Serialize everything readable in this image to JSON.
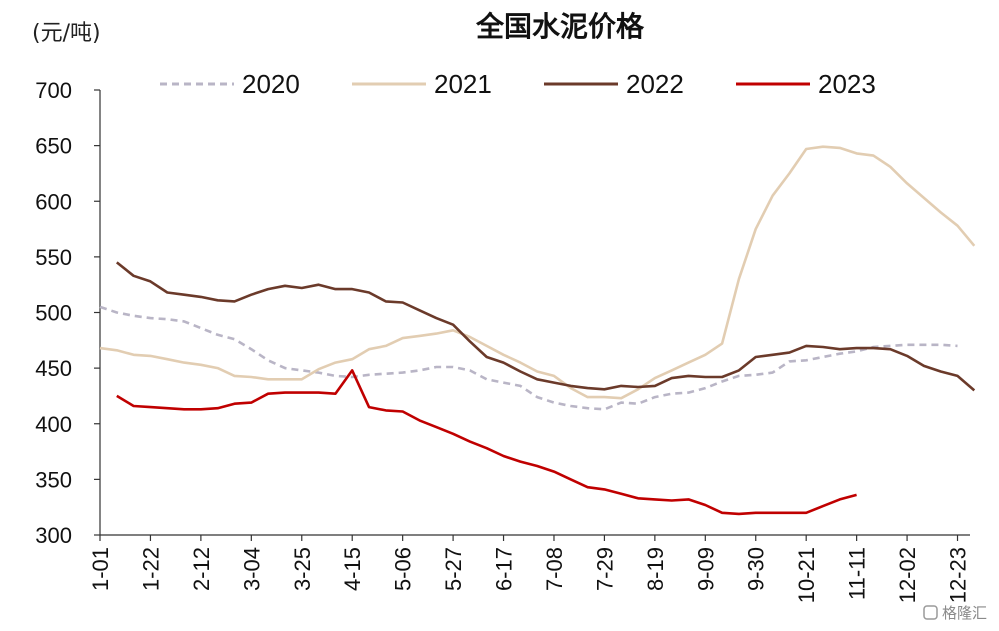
{
  "chart_data": {
    "type": "line",
    "title": "全国水泥价格",
    "ylabel": "(元/吨)",
    "xlabel": "",
    "ylim": [
      300,
      700
    ],
    "yticks": [
      300,
      350,
      400,
      450,
      500,
      550,
      600,
      650,
      700
    ],
    "x_ticks": [
      "1-01",
      "1-22",
      "2-12",
      "3-04",
      "3-25",
      "4-15",
      "5-06",
      "5-27",
      "6-17",
      "7-08",
      "7-29",
      "8-19",
      "9-09",
      "9-30",
      "10-21",
      "11-11",
      "12-02",
      "12-23"
    ],
    "legend_position": "top",
    "grid": false,
    "series": [
      {
        "name": "2020",
        "color": "#b9b5c6",
        "dash": true,
        "points": [
          [
            "1-01",
            505
          ],
          [
            "1-08",
            500
          ],
          [
            "1-15",
            497
          ],
          [
            "1-22",
            495
          ],
          [
            "1-29",
            494
          ],
          [
            "2-05",
            492
          ],
          [
            "2-12",
            486
          ],
          [
            "2-19",
            480
          ],
          [
            "2-26",
            476
          ],
          [
            "3-04",
            467
          ],
          [
            "3-11",
            457
          ],
          [
            "3-18",
            450
          ],
          [
            "3-25",
            448
          ],
          [
            "4-01",
            446
          ],
          [
            "4-08",
            443
          ],
          [
            "4-15",
            442
          ],
          [
            "4-22",
            444
          ],
          [
            "4-29",
            445
          ],
          [
            "5-06",
            446
          ],
          [
            "5-13",
            448
          ],
          [
            "5-20",
            451
          ],
          [
            "5-27",
            451
          ],
          [
            "6-03",
            448
          ],
          [
            "6-10",
            440
          ],
          [
            "6-17",
            437
          ],
          [
            "6-24",
            434
          ],
          [
            "7-01",
            424
          ],
          [
            "7-08",
            419
          ],
          [
            "7-15",
            416
          ],
          [
            "7-22",
            414
          ],
          [
            "7-29",
            413
          ],
          [
            "8-05",
            419
          ],
          [
            "8-12",
            418
          ],
          [
            "8-19",
            424
          ],
          [
            "8-26",
            427
          ],
          [
            "9-02",
            428
          ],
          [
            "9-09",
            432
          ],
          [
            "9-16",
            438
          ],
          [
            "9-23",
            443
          ],
          [
            "9-30",
            444
          ],
          [
            "10-07",
            446
          ],
          [
            "10-14",
            456
          ],
          [
            "10-21",
            457
          ],
          [
            "10-28",
            460
          ],
          [
            "11-04",
            463
          ],
          [
            "11-11",
            465
          ],
          [
            "11-18",
            469
          ],
          [
            "11-25",
            470
          ],
          [
            "12-02",
            471
          ],
          [
            "12-09",
            471
          ],
          [
            "12-16",
            471
          ],
          [
            "12-23",
            470
          ]
        ]
      },
      {
        "name": "2021",
        "color": "#e2cdb2",
        "dash": false,
        "points": [
          [
            "1-01",
            468
          ],
          [
            "1-08",
            466
          ],
          [
            "1-15",
            462
          ],
          [
            "1-22",
            461
          ],
          [
            "1-29",
            458
          ],
          [
            "2-05",
            455
          ],
          [
            "2-12",
            453
          ],
          [
            "2-19",
            450
          ],
          [
            "2-26",
            443
          ],
          [
            "3-04",
            442
          ],
          [
            "3-11",
            440
          ],
          [
            "3-18",
            440
          ],
          [
            "3-25",
            440
          ],
          [
            "4-01",
            449
          ],
          [
            "4-08",
            455
          ],
          [
            "4-15",
            458
          ],
          [
            "4-22",
            467
          ],
          [
            "4-29",
            470
          ],
          [
            "5-06",
            477
          ],
          [
            "5-13",
            479
          ],
          [
            "5-20",
            481
          ],
          [
            "5-27",
            484
          ],
          [
            "6-03",
            478
          ],
          [
            "6-10",
            470
          ],
          [
            "6-17",
            462
          ],
          [
            "6-24",
            455
          ],
          [
            "7-01",
            447
          ],
          [
            "7-08",
            443
          ],
          [
            "7-15",
            432
          ],
          [
            "7-22",
            424
          ],
          [
            "7-29",
            424
          ],
          [
            "8-05",
            423
          ],
          [
            "8-12",
            431
          ],
          [
            "8-19",
            441
          ],
          [
            "8-26",
            448
          ],
          [
            "9-02",
            455
          ],
          [
            "9-09",
            462
          ],
          [
            "9-16",
            472
          ],
          [
            "9-23",
            530
          ],
          [
            "9-30",
            575
          ],
          [
            "10-07",
            605
          ],
          [
            "10-14",
            625
          ],
          [
            "10-21",
            647
          ],
          [
            "10-28",
            649
          ],
          [
            "11-04",
            648
          ],
          [
            "11-11",
            643
          ],
          [
            "11-18",
            641
          ],
          [
            "11-25",
            631
          ],
          [
            "12-02",
            616
          ],
          [
            "12-09",
            603
          ],
          [
            "12-16",
            590
          ],
          [
            "12-23",
            578
          ],
          [
            "12-30",
            560
          ]
        ]
      },
      {
        "name": "2022",
        "color": "#6b3a2a",
        "dash": false,
        "points": [
          [
            "1-08",
            545
          ],
          [
            "1-15",
            533
          ],
          [
            "1-22",
            528
          ],
          [
            "1-29",
            518
          ],
          [
            "2-05",
            516
          ],
          [
            "2-12",
            514
          ],
          [
            "2-19",
            511
          ],
          [
            "2-26",
            510
          ],
          [
            "3-04",
            516
          ],
          [
            "3-11",
            521
          ],
          [
            "3-18",
            524
          ],
          [
            "3-25",
            522
          ],
          [
            "4-01",
            525
          ],
          [
            "4-08",
            521
          ],
          [
            "4-15",
            521
          ],
          [
            "4-22",
            518
          ],
          [
            "4-29",
            510
          ],
          [
            "5-06",
            509
          ],
          [
            "5-13",
            502
          ],
          [
            "5-20",
            495
          ],
          [
            "5-27",
            489
          ],
          [
            "6-03",
            474
          ],
          [
            "6-10",
            460
          ],
          [
            "6-17",
            455
          ],
          [
            "6-24",
            447
          ],
          [
            "7-01",
            440
          ],
          [
            "7-08",
            437
          ],
          [
            "7-15",
            434
          ],
          [
            "7-22",
            432
          ],
          [
            "7-29",
            431
          ],
          [
            "8-05",
            434
          ],
          [
            "8-12",
            433
          ],
          [
            "8-19",
            434
          ],
          [
            "8-26",
            441
          ],
          [
            "9-02",
            443
          ],
          [
            "9-09",
            442
          ],
          [
            "9-16",
            442
          ],
          [
            "9-23",
            448
          ],
          [
            "9-30",
            460
          ],
          [
            "10-07",
            462
          ],
          [
            "10-14",
            464
          ],
          [
            "10-21",
            470
          ],
          [
            "10-28",
            469
          ],
          [
            "11-04",
            467
          ],
          [
            "11-11",
            468
          ],
          [
            "11-18",
            468
          ],
          [
            "11-25",
            467
          ],
          [
            "12-02",
            461
          ],
          [
            "12-09",
            452
          ],
          [
            "12-16",
            447
          ],
          [
            "12-23",
            443
          ],
          [
            "12-30",
            430
          ]
        ]
      },
      {
        "name": "2023",
        "color": "#c00000",
        "dash": false,
        "points": [
          [
            "1-08",
            425
          ],
          [
            "1-15",
            416
          ],
          [
            "1-22",
            415
          ],
          [
            "1-29",
            414
          ],
          [
            "2-05",
            413
          ],
          [
            "2-12",
            413
          ],
          [
            "2-19",
            414
          ],
          [
            "2-26",
            418
          ],
          [
            "3-04",
            419
          ],
          [
            "3-11",
            427
          ],
          [
            "3-18",
            428
          ],
          [
            "3-25",
            428
          ],
          [
            "4-01",
            428
          ],
          [
            "4-08",
            427
          ],
          [
            "4-15",
            448
          ],
          [
            "4-22",
            415
          ],
          [
            "4-29",
            412
          ],
          [
            "5-06",
            411
          ],
          [
            "5-13",
            403
          ],
          [
            "5-20",
            397
          ],
          [
            "5-27",
            391
          ],
          [
            "6-03",
            384
          ],
          [
            "6-10",
            378
          ],
          [
            "6-17",
            371
          ],
          [
            "6-24",
            366
          ],
          [
            "7-01",
            362
          ],
          [
            "7-08",
            357
          ],
          [
            "7-15",
            350
          ],
          [
            "7-22",
            343
          ],
          [
            "7-29",
            341
          ],
          [
            "8-05",
            337
          ],
          [
            "8-12",
            333
          ],
          [
            "8-19",
            332
          ],
          [
            "8-26",
            331
          ],
          [
            "9-02",
            332
          ],
          [
            "9-09",
            327
          ],
          [
            "9-16",
            320
          ],
          [
            "9-23",
            319
          ],
          [
            "9-30",
            320
          ],
          [
            "10-07",
            320
          ],
          [
            "10-14",
            320
          ],
          [
            "10-21",
            320
          ],
          [
            "10-28",
            326
          ],
          [
            "11-04",
            332
          ],
          [
            "11-11",
            336
          ]
        ]
      }
    ]
  },
  "watermark": "格隆汇"
}
